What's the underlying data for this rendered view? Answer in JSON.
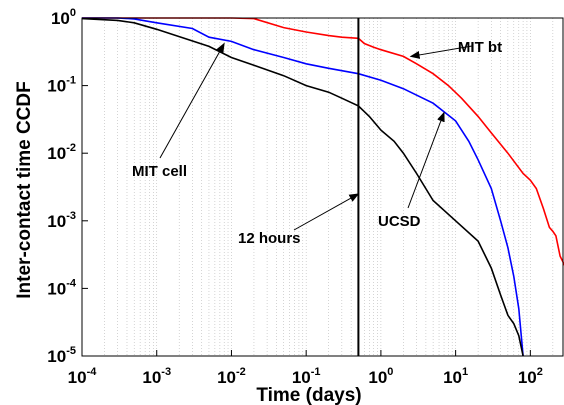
{
  "chart_data": {
    "type": "line",
    "xlabel": "Time (days)",
    "ylabel": "Inter-contact time CCDF",
    "x_scale": "log",
    "y_scale": "log",
    "xlim": [
      0.0001,
      300
    ],
    "ylim": [
      1e-05,
      1
    ],
    "x_ticks": [
      {
        "base": "10",
        "exp": "-4",
        "value": 0.0001
      },
      {
        "base": "10",
        "exp": "-3",
        "value": 0.001
      },
      {
        "base": "10",
        "exp": "-2",
        "value": 0.01
      },
      {
        "base": "10",
        "exp": "-1",
        "value": 0.1
      },
      {
        "base": "10",
        "exp": "0",
        "value": 1
      },
      {
        "base": "10",
        "exp": "1",
        "value": 10
      },
      {
        "base": "10",
        "exp": "2",
        "value": 100
      }
    ],
    "y_ticks": [
      {
        "base": "10",
        "exp": "0",
        "value": 1
      },
      {
        "base": "10",
        "exp": "-1",
        "value": 0.1
      },
      {
        "base": "10",
        "exp": "-2",
        "value": 0.01
      },
      {
        "base": "10",
        "exp": "-3",
        "value": 0.001
      },
      {
        "base": "10",
        "exp": "-4",
        "value": 0.0001
      },
      {
        "base": "10",
        "exp": "-5",
        "value": 1e-05
      }
    ],
    "grid": "vertical minor dotted",
    "vline": {
      "x": 0.5,
      "label": "12 hours"
    },
    "series": [
      {
        "name": "MIT bt",
        "color": "#ff0000",
        "points": [
          [
            0.0001,
            1
          ],
          [
            0.0003,
            1
          ],
          [
            0.001,
            1
          ],
          [
            0.01,
            1
          ],
          [
            0.02,
            0.98
          ],
          [
            0.05,
            0.72
          ],
          [
            0.1,
            0.62
          ],
          [
            0.2,
            0.55
          ],
          [
            0.3,
            0.52
          ],
          [
            0.5,
            0.5
          ],
          [
            0.6,
            0.42
          ],
          [
            0.8,
            0.37
          ],
          [
            1,
            0.34
          ],
          [
            2,
            0.27
          ],
          [
            3,
            0.21
          ],
          [
            5,
            0.15
          ],
          [
            8,
            0.1
          ],
          [
            12,
            0.065
          ],
          [
            20,
            0.035
          ],
          [
            30,
            0.02
          ],
          [
            50,
            0.01
          ],
          [
            80,
            0.005
          ],
          [
            100,
            0.004
          ],
          [
            120,
            0.003
          ],
          [
            150,
            0.0015
          ],
          [
            180,
            0.0008
          ],
          [
            200,
            0.0007
          ],
          [
            220,
            0.0006
          ],
          [
            250,
            0.0003
          ],
          [
            300,
            0.0002
          ]
        ]
      },
      {
        "name": "UCSD",
        "color": "#0000ff",
        "points": [
          [
            0.0001,
            1
          ],
          [
            0.0003,
            1
          ],
          [
            0.0005,
            0.97
          ],
          [
            0.001,
            0.85
          ],
          [
            0.003,
            0.7
          ],
          [
            0.005,
            0.52
          ],
          [
            0.01,
            0.45
          ],
          [
            0.02,
            0.34
          ],
          [
            0.05,
            0.26
          ],
          [
            0.1,
            0.21
          ],
          [
            0.2,
            0.18
          ],
          [
            0.5,
            0.15
          ],
          [
            1,
            0.12
          ],
          [
            2,
            0.09
          ],
          [
            5,
            0.055
          ],
          [
            10,
            0.03
          ],
          [
            15,
            0.015
          ],
          [
            20,
            0.008
          ],
          [
            30,
            0.003
          ],
          [
            40,
            0.001
          ],
          [
            50,
            0.0004
          ],
          [
            60,
            0.00015
          ],
          [
            70,
            5e-05
          ],
          [
            80,
            1e-05
          ]
        ]
      },
      {
        "name": "MIT cell",
        "color": "#000000",
        "points": [
          [
            0.0001,
            0.98
          ],
          [
            0.0003,
            0.92
          ],
          [
            0.0005,
            0.85
          ],
          [
            0.001,
            0.68
          ],
          [
            0.002,
            0.53
          ],
          [
            0.005,
            0.38
          ],
          [
            0.01,
            0.26
          ],
          [
            0.02,
            0.2
          ],
          [
            0.05,
            0.14
          ],
          [
            0.1,
            0.1
          ],
          [
            0.2,
            0.08
          ],
          [
            0.3,
            0.065
          ],
          [
            0.5,
            0.05
          ],
          [
            0.7,
            0.035
          ],
          [
            1,
            0.022
          ],
          [
            1.5,
            0.015
          ],
          [
            2,
            0.01
          ],
          [
            3,
            0.005
          ],
          [
            5,
            0.002
          ],
          [
            10,
            0.001
          ],
          [
            20,
            0.0005
          ],
          [
            30,
            0.0002
          ],
          [
            40,
            8e-05
          ],
          [
            50,
            4e-05
          ],
          [
            60,
            3e-05
          ],
          [
            70,
            2e-05
          ],
          [
            80,
            1e-05
          ]
        ]
      }
    ],
    "annotations": [
      {
        "text": "MIT bt",
        "arrow_to": [
          2.5,
          0.27
        ]
      },
      {
        "text": "MIT cell",
        "arrow_to": [
          0.008,
          0.42
        ]
      },
      {
        "text": "UCSD",
        "arrow_to": [
          7,
          0.04
        ]
      },
      {
        "text": "12 hours",
        "arrow_to": [
          0.5,
          0.0025
        ]
      }
    ]
  }
}
